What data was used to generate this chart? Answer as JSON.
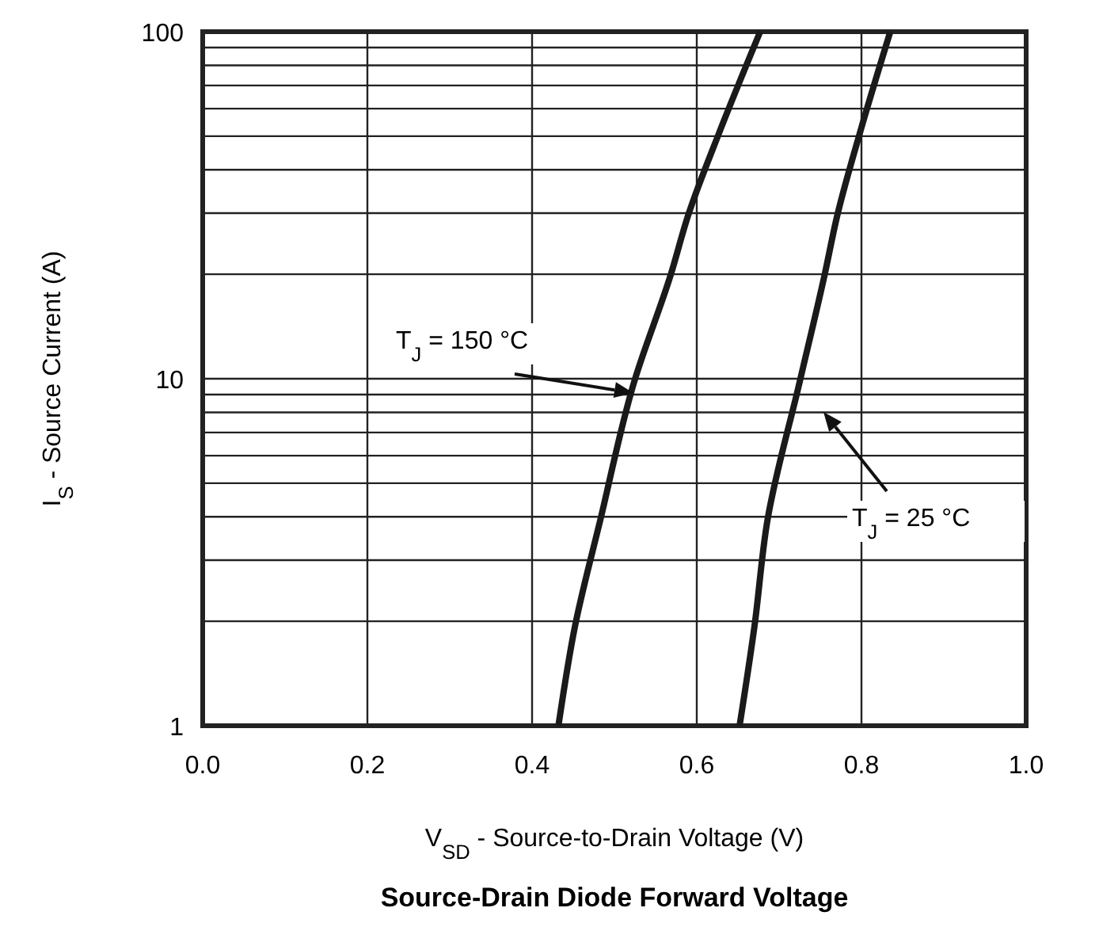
{
  "chart_data": {
    "type": "line",
    "title": "Source-Drain Diode Forward Voltage",
    "xlabel": "V$_{SD}$ - Source-to-Drain Voltage (V)",
    "ylabel": "I$_{S}$ - Source Current (A)",
    "log": "y",
    "grid": true,
    "marker": "none",
    "line_style": "solid",
    "xlim": [
      0,
      1
    ],
    "xticks": [
      {
        "value": 0,
        "label": "0.0"
      },
      0.2,
      0.4,
      0.6,
      0.8,
      {
        "value": 1,
        "label": "1.0"
      }
    ],
    "ylim": [
      1,
      100
    ],
    "yticks": [
      1,
      {
        "value": 2,
        "label": null
      },
      {
        "value": 3,
        "label": null
      },
      {
        "value": 4,
        "label": null
      },
      {
        "value": 5,
        "label": null
      },
      {
        "value": 6,
        "label": null
      },
      {
        "value": 7,
        "label": null
      },
      {
        "value": 8,
        "label": null
      },
      {
        "value": 9,
        "label": null
      },
      10,
      {
        "value": 20,
        "label": null
      },
      {
        "value": 30,
        "label": null
      },
      {
        "value": 40,
        "label": null
      },
      {
        "value": 50,
        "label": null
      },
      {
        "value": 60,
        "label": null
      },
      {
        "value": 70,
        "label": null
      },
      {
        "value": 80,
        "label": null
      },
      {
        "value": 90,
        "label": null
      },
      100
    ],
    "series": [
      {
        "color": "#1a1a1a",
        "x": [
          0.432,
          0.452,
          0.483,
          0.524,
          0.568,
          0.59,
          0.627,
          0.677
        ],
        "values": [
          1,
          1.93,
          3.93,
          9.8,
          19.8,
          29.8,
          51,
          100
        ]
      },
      {
        "color": "#1a1a1a",
        "x": [
          0.652,
          0.67,
          0.686,
          0.725,
          0.755,
          0.771,
          0.798,
          0.835
        ],
        "values": [
          1,
          1.93,
          3.93,
          9.8,
          19.8,
          29.8,
          51,
          100
        ]
      }
    ],
    "annotations": [
      "T$_{J}$ = 150 °C",
      "T$_{J}$ = 25 °C"
    ]
  }
}
